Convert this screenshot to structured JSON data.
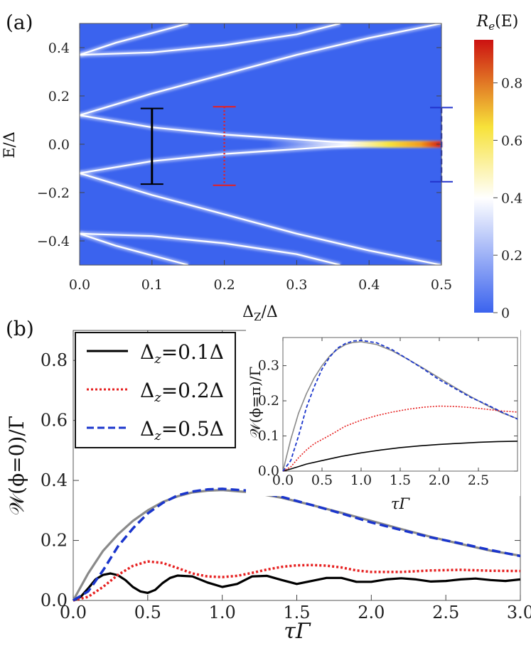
{
  "chart_data": [
    {
      "id": "a",
      "type": "heatmap",
      "panel_label": "(a)",
      "xlabel": "Δ_Z/Δ",
      "ylabel": "E/Δ",
      "xlim": [
        0.0,
        0.5
      ],
      "ylim": [
        -0.5,
        0.5
      ],
      "xticks": [
        "0.0",
        "0.1",
        "0.2",
        "0.3",
        "0.4",
        "0.5"
      ],
      "yticks": [
        "−0.4",
        "−0.2",
        "0.0",
        "0.2",
        "0.4"
      ],
      "colorbar": {
        "title": "R_e(E)",
        "range": [
          0,
          0.95
        ],
        "ticks": [
          "0",
          "0.2",
          "0.4",
          "0.6",
          "0.8"
        ],
        "colors": [
          "#3b63ee",
          "#ffffff",
          "#f7e23a",
          "#cc1111"
        ]
      },
      "bands": [
        {
          "name": "inner-upper",
          "points": [
            [
              0.0,
              0.12
            ],
            [
              0.1,
              0.07
            ],
            [
              0.2,
              0.04
            ],
            [
              0.3,
              0.02
            ],
            [
              0.35,
              0.01
            ],
            [
              0.4,
              0.003
            ],
            [
              0.5,
              0.003
            ]
          ]
        },
        {
          "name": "inner-lower",
          "points": [
            [
              0.0,
              -0.12
            ],
            [
              0.1,
              -0.07
            ],
            [
              0.2,
              -0.04
            ],
            [
              0.3,
              -0.02
            ],
            [
              0.35,
              -0.01
            ],
            [
              0.4,
              -0.003
            ],
            [
              0.5,
              -0.003
            ]
          ]
        },
        {
          "name": "rise-upper",
          "points": [
            [
              0.0,
              0.12
            ],
            [
              0.1,
              0.21
            ],
            [
              0.2,
              0.29
            ],
            [
              0.3,
              0.37
            ],
            [
              0.4,
              0.44
            ],
            [
              0.5,
              0.5
            ]
          ]
        },
        {
          "name": "rise-lower",
          "points": [
            [
              0.0,
              -0.12
            ],
            [
              0.1,
              -0.21
            ],
            [
              0.2,
              -0.29
            ],
            [
              0.3,
              -0.37
            ],
            [
              0.4,
              -0.44
            ],
            [
              0.5,
              -0.5
            ]
          ]
        },
        {
          "name": "outer-upper-a",
          "points": [
            [
              0.0,
              0.37
            ],
            [
              0.1,
              0.38
            ],
            [
              0.2,
              0.41
            ],
            [
              0.3,
              0.455
            ],
            [
              0.36,
              0.5
            ]
          ]
        },
        {
          "name": "outer-upper-b",
          "points": [
            [
              0.0,
              0.37
            ],
            [
              0.05,
              0.42
            ],
            [
              0.1,
              0.46
            ],
            [
              0.15,
              0.5
            ]
          ]
        },
        {
          "name": "outer-lower-a",
          "points": [
            [
              0.0,
              -0.37
            ],
            [
              0.1,
              -0.38
            ],
            [
              0.2,
              -0.41
            ],
            [
              0.3,
              -0.455
            ],
            [
              0.36,
              -0.5
            ]
          ]
        },
        {
          "name": "outer-lower-b",
          "points": [
            [
              0.0,
              -0.37
            ],
            [
              0.05,
              -0.42
            ],
            [
              0.1,
              -0.46
            ],
            [
              0.15,
              -0.5
            ]
          ]
        }
      ],
      "error_bars": [
        {
          "x": 0.1,
          "low": -0.165,
          "high": 0.148,
          "color": "#000000",
          "style": "solid"
        },
        {
          "x": 0.2,
          "low": -0.17,
          "high": 0.155,
          "color": "#e62020",
          "style": "dotted"
        },
        {
          "x": 0.5,
          "low": -0.155,
          "high": 0.152,
          "color": "#2233cc",
          "style": "dashed"
        }
      ]
    },
    {
      "id": "b",
      "type": "line",
      "panel_label": "(b)",
      "xlabel": "τΓ",
      "ylabel": "𝒲(ϕ=0)/Γ",
      "xlim": [
        0.0,
        3.0
      ],
      "ylim": [
        0.0,
        0.9
      ],
      "xticks": [
        "0.0",
        "0.5",
        "1.0",
        "1.5",
        "2.0",
        "2.5",
        "3.0"
      ],
      "yticks": [
        "0.0",
        "0.2",
        "0.4",
        "0.6",
        "0.8"
      ],
      "legend": [
        {
          "label": "Δ_z=0.1Δ",
          "color": "#000000",
          "style": "solid"
        },
        {
          "label": "Δ_z=0.2Δ",
          "color": "#e62020",
          "style": "dotted"
        },
        {
          "label": "Δ_z=0.5Δ",
          "color": "#1a35cc",
          "style": "dashed"
        }
      ],
      "series": [
        {
          "name": "Δz=0.1Δ",
          "color": "#000000",
          "style": "solid",
          "x": [
            0.0,
            0.05,
            0.1,
            0.15,
            0.2,
            0.25,
            0.3,
            0.35,
            0.4,
            0.45,
            0.5,
            0.55,
            0.6,
            0.65,
            0.7,
            0.8,
            0.9,
            1.0,
            1.1,
            1.2,
            1.3,
            1.4,
            1.5,
            1.6,
            1.7,
            1.8,
            1.9,
            2.0,
            2.1,
            2.2,
            2.3,
            2.4,
            2.5,
            2.6,
            2.7,
            2.8,
            2.9,
            3.0
          ],
          "y": [
            0.0,
            0.012,
            0.04,
            0.07,
            0.085,
            0.09,
            0.084,
            0.068,
            0.045,
            0.03,
            0.025,
            0.035,
            0.058,
            0.075,
            0.083,
            0.08,
            0.06,
            0.045,
            0.055,
            0.08,
            0.082,
            0.068,
            0.055,
            0.065,
            0.075,
            0.075,
            0.062,
            0.062,
            0.07,
            0.074,
            0.07,
            0.063,
            0.065,
            0.07,
            0.073,
            0.068,
            0.065,
            0.07
          ]
        },
        {
          "name": "Δz=0.2Δ",
          "color": "#e62020",
          "style": "dotted",
          "x": [
            0.0,
            0.1,
            0.2,
            0.3,
            0.4,
            0.5,
            0.6,
            0.7,
            0.8,
            0.9,
            1.0,
            1.1,
            1.2,
            1.3,
            1.4,
            1.5,
            1.6,
            1.7,
            1.8,
            1.9,
            2.0,
            2.2,
            2.4,
            2.6,
            2.8,
            3.0
          ],
          "y": [
            0.0,
            0.012,
            0.045,
            0.085,
            0.115,
            0.13,
            0.125,
            0.108,
            0.09,
            0.08,
            0.078,
            0.082,
            0.092,
            0.103,
            0.112,
            0.117,
            0.118,
            0.116,
            0.11,
            0.1,
            0.095,
            0.095,
            0.1,
            0.102,
            0.099,
            0.098
          ]
        },
        {
          "name": "Δz=0.5Δ",
          "color": "#1a35cc",
          "style": "dashed",
          "x": [
            0.0,
            0.1,
            0.2,
            0.3,
            0.4,
            0.5,
            0.6,
            0.7,
            0.8,
            0.9,
            1.0,
            1.2,
            1.4,
            1.6,
            1.8,
            2.0,
            2.2,
            2.4,
            2.6,
            2.8,
            3.0
          ],
          "y": [
            0.0,
            0.03,
            0.1,
            0.18,
            0.24,
            0.29,
            0.325,
            0.35,
            0.363,
            0.37,
            0.372,
            0.365,
            0.345,
            0.318,
            0.29,
            0.26,
            0.235,
            0.21,
            0.19,
            0.168,
            0.148
          ]
        },
        {
          "name": "reference",
          "color": "#8a8a8a",
          "style": "solid",
          "x": [
            0.0,
            0.05,
            0.1,
            0.2,
            0.3,
            0.4,
            0.5,
            0.6,
            0.7,
            0.8,
            0.9,
            1.0,
            1.2,
            1.4,
            1.6,
            1.8,
            2.0,
            2.2,
            2.4,
            2.6,
            2.8,
            3.0
          ],
          "y": [
            0.0,
            0.045,
            0.09,
            0.165,
            0.22,
            0.265,
            0.3,
            0.328,
            0.347,
            0.36,
            0.366,
            0.368,
            0.36,
            0.342,
            0.318,
            0.292,
            0.265,
            0.238,
            0.212,
            0.188,
            0.166,
            0.149
          ]
        }
      ]
    },
    {
      "id": "inset",
      "type": "line",
      "xlabel": "τΓ",
      "ylabel": "𝒲(ϕ=π)/Γ",
      "xlim": [
        0.0,
        3.0
      ],
      "ylim": [
        0.0,
        0.38
      ],
      "xticks": [
        "0.0",
        "0.5",
        "1.0",
        "1.5",
        "2.0",
        "2.5"
      ],
      "yticks": [
        "0.0",
        "0.1",
        "0.2",
        "0.3"
      ],
      "series": [
        {
          "name": "Δz=0.1Δ",
          "color": "#000000",
          "style": "solid",
          "x": [
            0.0,
            0.1,
            0.2,
            0.3,
            0.5,
            0.75,
            1.0,
            1.25,
            1.5,
            1.75,
            2.0,
            2.25,
            2.5,
            2.75,
            3.0
          ],
          "y": [
            0.0,
            0.006,
            0.013,
            0.02,
            0.03,
            0.042,
            0.052,
            0.06,
            0.067,
            0.072,
            0.076,
            0.079,
            0.082,
            0.084,
            0.085
          ]
        },
        {
          "name": "Δz=0.2Δ",
          "color": "#e62020",
          "style": "dotted",
          "x": [
            0.0,
            0.1,
            0.2,
            0.3,
            0.4,
            0.5,
            0.6,
            0.7,
            0.8,
            1.0,
            1.2,
            1.4,
            1.6,
            1.8,
            2.0,
            2.2,
            2.4,
            2.6,
            2.8,
            3.0
          ],
          "y": [
            0.0,
            0.012,
            0.038,
            0.06,
            0.078,
            0.09,
            0.102,
            0.115,
            0.128,
            0.145,
            0.158,
            0.168,
            0.176,
            0.182,
            0.185,
            0.184,
            0.181,
            0.176,
            0.171,
            0.168
          ]
        },
        {
          "name": "Δz=0.5Δ",
          "color": "#1a35cc",
          "style": "dashed",
          "x": [
            0.0,
            0.1,
            0.2,
            0.3,
            0.4,
            0.5,
            0.6,
            0.7,
            0.8,
            0.9,
            1.0,
            1.2,
            1.4,
            1.6,
            1.8,
            2.0,
            2.2,
            2.4,
            2.6,
            2.8,
            3.0
          ],
          "y": [
            0.0,
            0.03,
            0.1,
            0.18,
            0.24,
            0.29,
            0.325,
            0.35,
            0.363,
            0.37,
            0.372,
            0.365,
            0.345,
            0.318,
            0.29,
            0.26,
            0.235,
            0.21,
            0.19,
            0.168,
            0.148
          ]
        },
        {
          "name": "reference",
          "color": "#8a8a8a",
          "style": "solid",
          "x": [
            0.0,
            0.05,
            0.1,
            0.2,
            0.3,
            0.4,
            0.5,
            0.6,
            0.7,
            0.8,
            0.9,
            1.0,
            1.2,
            1.4,
            1.6,
            1.8,
            2.0,
            2.2,
            2.4,
            2.6,
            2.8,
            3.0
          ],
          "y": [
            0.0,
            0.045,
            0.09,
            0.165,
            0.22,
            0.265,
            0.3,
            0.328,
            0.347,
            0.36,
            0.366,
            0.368,
            0.36,
            0.342,
            0.318,
            0.292,
            0.265,
            0.238,
            0.212,
            0.188,
            0.166,
            0.149
          ]
        }
      ]
    }
  ]
}
